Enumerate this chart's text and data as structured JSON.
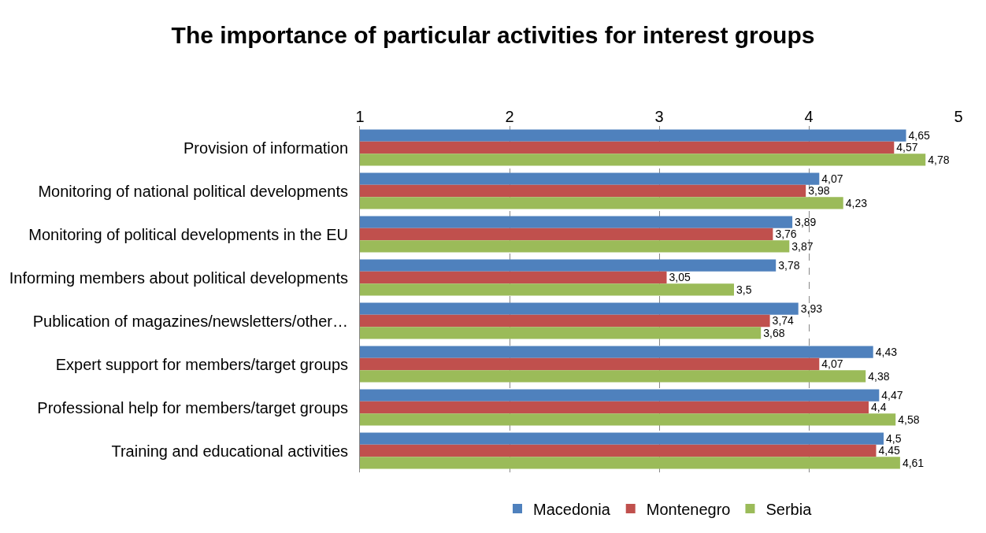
{
  "chart_data": {
    "type": "bar",
    "title": "The importance of particular activities for interest groups",
    "orientation": "horizontal",
    "categories": [
      "Provision of information",
      "Monitoring of national political developments",
      "Monitoring of political developments in the EU",
      "Informing members about political developments",
      "Publication of magazines/newsletters/other…",
      "Expert support for members/target groups",
      "Professional help for members/target groups",
      "Training and educational activities"
    ],
    "series": [
      {
        "name": "Macedonia",
        "color": "#4f81bd",
        "values": [
          4.65,
          4.07,
          3.89,
          3.78,
          3.93,
          4.43,
          4.47,
          4.5
        ],
        "value_labels": [
          "4,65",
          "4,07",
          "3,89",
          "3,78",
          "3,93",
          "4,43",
          "4,47",
          "4,5"
        ]
      },
      {
        "name": "Montenegro",
        "color": "#c0504d",
        "values": [
          4.57,
          3.98,
          3.76,
          3.05,
          3.74,
          4.07,
          4.4,
          4.45
        ],
        "value_labels": [
          "4,57",
          "3,98",
          "3,76",
          "3,05",
          "3,74",
          "4,07",
          "4,4",
          "4,45"
        ]
      },
      {
        "name": "Serbia",
        "color": "#9bbb59",
        "values": [
          4.78,
          4.23,
          3.87,
          3.5,
          3.68,
          4.38,
          4.58,
          4.61
        ],
        "value_labels": [
          "4,78",
          "4,23",
          "3,87",
          "3,5",
          "3,68",
          "4,38",
          "4,58",
          "4,61"
        ]
      }
    ],
    "xlim": [
      1,
      5
    ],
    "xticks": [
      1,
      2,
      3,
      4,
      5
    ],
    "grid": "x",
    "legend": "bottom"
  }
}
